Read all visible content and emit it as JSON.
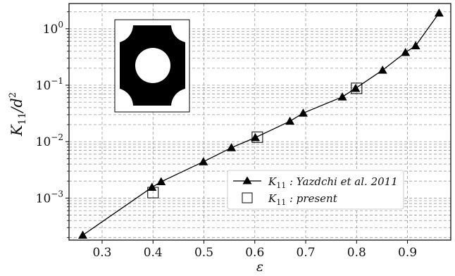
{
  "chart_data": {
    "type": "line",
    "xlabel": "ε",
    "ylabel": "K11/d²",
    "xlim": [
      0.235,
      0.985
    ],
    "ylim": [
      0.00018,
      2.8
    ],
    "yscale": "log",
    "grid": true,
    "legend_position": "lower-right",
    "xticks": [
      {
        "value": 0.3,
        "label": "0.3"
      },
      {
        "value": 0.4,
        "label": "0.4"
      },
      {
        "value": 0.5,
        "label": "0.5"
      },
      {
        "value": 0.6,
        "label": "0.6"
      },
      {
        "value": 0.7,
        "label": "0.7"
      },
      {
        "value": 0.8,
        "label": "0.8"
      },
      {
        "value": 0.9,
        "label": "0.9"
      }
    ],
    "yticks": [
      {
        "value": 0.001,
        "base": "10",
        "exp": "−3"
      },
      {
        "value": 0.01,
        "base": "10",
        "exp": "−2"
      },
      {
        "value": 0.1,
        "base": "10",
        "exp": "−1"
      },
      {
        "value": 1,
        "base": "10",
        "exp": "0"
      }
    ],
    "series": [
      {
        "name": "K11 : Yazdchi et al. 2011",
        "legend_main": "K",
        "legend_sub": "11",
        "legend_rest": " : Yazdchi et al. 2011",
        "marker": "triangle",
        "color": "#000000",
        "x": [
          0.262,
          0.398,
          0.416,
          0.499,
          0.554,
          0.601,
          0.669,
          0.695,
          0.772,
          0.798,
          0.851,
          0.896,
          0.916,
          0.962
        ],
        "y": [
          0.00022,
          0.00155,
          0.00195,
          0.0044,
          0.0078,
          0.0118,
          0.023,
          0.032,
          0.062,
          0.088,
          0.185,
          0.38,
          0.5,
          1.9
        ]
      },
      {
        "name": "K11 : present",
        "legend_main": "K",
        "legend_sub": "11",
        "legend_rest": " : present",
        "marker": "square",
        "color": "#000000",
        "x": [
          0.4,
          0.605,
          0.8
        ],
        "y": [
          0.00125,
          0.012,
          0.088
        ]
      }
    ]
  }
}
